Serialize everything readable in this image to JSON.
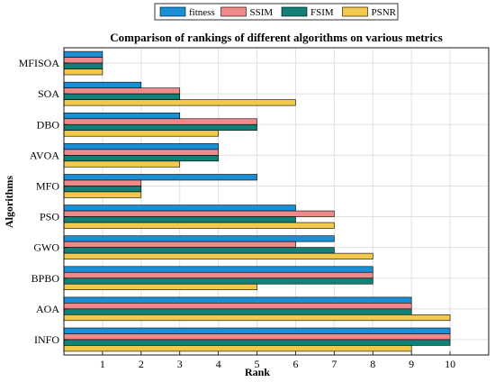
{
  "chart_data": {
    "type": "bar",
    "orientation": "horizontal",
    "title": "Comparison of rankings of different algorithms on various metrics",
    "xlabel": "Rank",
    "ylabel": "Algorithms",
    "xlim": [
      0,
      11
    ],
    "xticks": [
      "1",
      "2",
      "3",
      "4",
      "5",
      "6",
      "7",
      "8",
      "9",
      "10"
    ],
    "grid": true,
    "legend_position": "top-center",
    "categories": [
      "MFISOA",
      "SOA",
      "DBO",
      "AVOA",
      "MFO",
      "PSO",
      "GWO",
      "BPBO",
      "AOA",
      "INFO"
    ],
    "series": [
      {
        "name": "fitness",
        "color": "#1a8fd6",
        "values": [
          1,
          2,
          3,
          4,
          5,
          6,
          7,
          8,
          9,
          10
        ]
      },
      {
        "name": "SSIM",
        "color": "#f08a8a",
        "values": [
          1,
          3,
          5,
          4,
          2,
          7,
          6,
          8,
          9,
          10
        ]
      },
      {
        "name": "FSIM",
        "color": "#138078",
        "values": [
          1,
          3,
          5,
          4,
          2,
          6,
          7,
          8,
          9,
          10
        ]
      },
      {
        "name": "PSNR",
        "color": "#f2c94c",
        "values": [
          1,
          6,
          4,
          3,
          2,
          7,
          8,
          5,
          10,
          9
        ]
      }
    ]
  }
}
